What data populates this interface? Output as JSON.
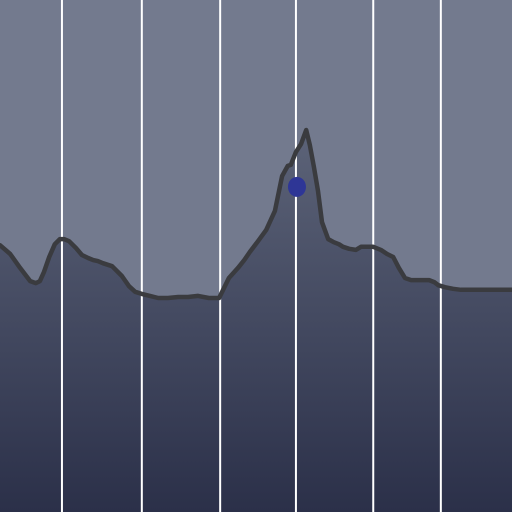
{
  "chart_data": {
    "type": "area",
    "title": "",
    "xlabel": "",
    "ylabel": "",
    "xlim": [
      0,
      100
    ],
    "ylim": [
      0,
      100
    ],
    "grid": "vertical",
    "legend": "none",
    "colors": {
      "sky": "#737a8e",
      "area_top": "#5c6378",
      "area_bottom": "#2b3049",
      "line": "#3a3b3f",
      "grid": "#ffffff",
      "marker": "#2e3696"
    },
    "gridlines_x": [
      12.1,
      27.7,
      43.0,
      57.8,
      72.9,
      86.1
    ],
    "series": [
      {
        "x": [
          0,
          2.0,
          3.9,
          5.9,
          7.0,
          7.8,
          8.6,
          9.6,
          10.7,
          11.7,
          12.5,
          13.5,
          14.8,
          16.0,
          17.2,
          18.2,
          19.1,
          20.1,
          21.9,
          23.8,
          25.2,
          26.4,
          27.7,
          29.3,
          30.9,
          32.8,
          34.8,
          36.7,
          38.7,
          40.8,
          42.8,
          44.7,
          46.5,
          47.7,
          48.8,
          50.4,
          52.0,
          53.7,
          55.1,
          56.2,
          56.8,
          57.8,
          58.8,
          59.8,
          60.5,
          61.3,
          62.1,
          62.9,
          64.1,
          65.2,
          66.2,
          67.0,
          68.2,
          69.5,
          70.5,
          71.7,
          72.9,
          74.4,
          75.6,
          76.8,
          77.9,
          79.1,
          80.3,
          81.3,
          82.6,
          83.8,
          84.8,
          85.6,
          86.9,
          88.5,
          90.0,
          91.4,
          92.8,
          94.3,
          95.9,
          98.0,
          100
        ],
        "y": [
          52.1,
          50.4,
          47.7,
          45.1,
          44.7,
          45.1,
          46.9,
          49.8,
          52.3,
          53.3,
          53.3,
          52.9,
          51.6,
          50.2,
          49.6,
          49.2,
          49.0,
          48.6,
          48.0,
          46.1,
          44.1,
          43.0,
          42.6,
          42.2,
          41.8,
          41.8,
          42.0,
          42.0,
          42.2,
          41.8,
          41.8,
          45.7,
          47.7,
          49.2,
          50.8,
          52.9,
          55.1,
          58.8,
          65.6,
          67.6,
          67.8,
          70.3,
          71.9,
          74.6,
          71.7,
          67.4,
          62.7,
          56.6,
          53.3,
          52.7,
          52.3,
          51.8,
          51.4,
          51.2,
          51.8,
          51.8,
          51.8,
          51.2,
          50.4,
          49.8,
          47.7,
          45.7,
          45.3,
          45.3,
          45.3,
          45.3,
          44.9,
          44.3,
          43.9,
          43.6,
          43.4,
          43.4,
          43.4,
          43.4,
          43.4,
          43.4,
          43.4
        ]
      }
    ],
    "highlight_point": {
      "x": 58.0,
      "y": 63.5
    }
  }
}
